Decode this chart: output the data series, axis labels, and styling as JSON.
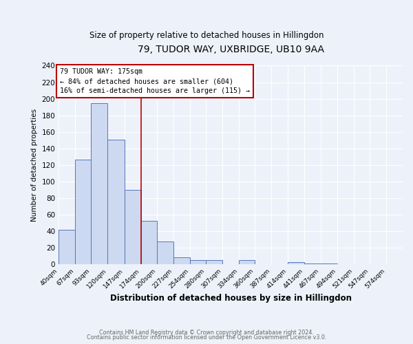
{
  "title": "79, TUDOR WAY, UXBRIDGE, UB10 9AA",
  "subtitle": "Size of property relative to detached houses in Hillingdon",
  "xlabel": "Distribution of detached houses by size in Hillingdon",
  "ylabel": "Number of detached properties",
  "bar_values": [
    42,
    127,
    195,
    151,
    90,
    53,
    28,
    9,
    5,
    5,
    0,
    5,
    0,
    0,
    3,
    1,
    1,
    0,
    0,
    0
  ],
  "bin_edges": [
    40,
    67,
    93,
    120,
    147,
    174,
    200,
    227,
    254,
    280,
    307,
    334,
    360,
    387,
    414,
    441,
    467,
    494,
    521,
    547,
    574
  ],
  "bin_labels": [
    "40sqm",
    "67sqm",
    "93sqm",
    "120sqm",
    "147sqm",
    "174sqm",
    "200sqm",
    "227sqm",
    "254sqm",
    "280sqm",
    "307sqm",
    "334sqm",
    "360sqm",
    "387sqm",
    "414sqm",
    "441sqm",
    "467sqm",
    "494sqm",
    "521sqm",
    "547sqm",
    "574sqm"
  ],
  "bar_color_fill": "#ccd9f0",
  "bar_color_edge": "#5577bb",
  "vline_x": 174,
  "vline_color": "#bb0000",
  "annotation_title": "79 TUDOR WAY: 175sqm",
  "annotation_line1": "← 84% of detached houses are smaller (604)",
  "annotation_line2": "16% of semi-detached houses are larger (115) →",
  "annotation_box_color": "#bb0000",
  "ylim": [
    0,
    240
  ],
  "yticks": [
    0,
    20,
    40,
    60,
    80,
    100,
    120,
    140,
    160,
    180,
    200,
    220,
    240
  ],
  "footer1": "Contains HM Land Registry data © Crown copyright and database right 2024.",
  "footer2": "Contains public sector information licensed under the Open Government Licence v3.0.",
  "background_color": "#edf2fa",
  "grid_color": "#ffffff"
}
